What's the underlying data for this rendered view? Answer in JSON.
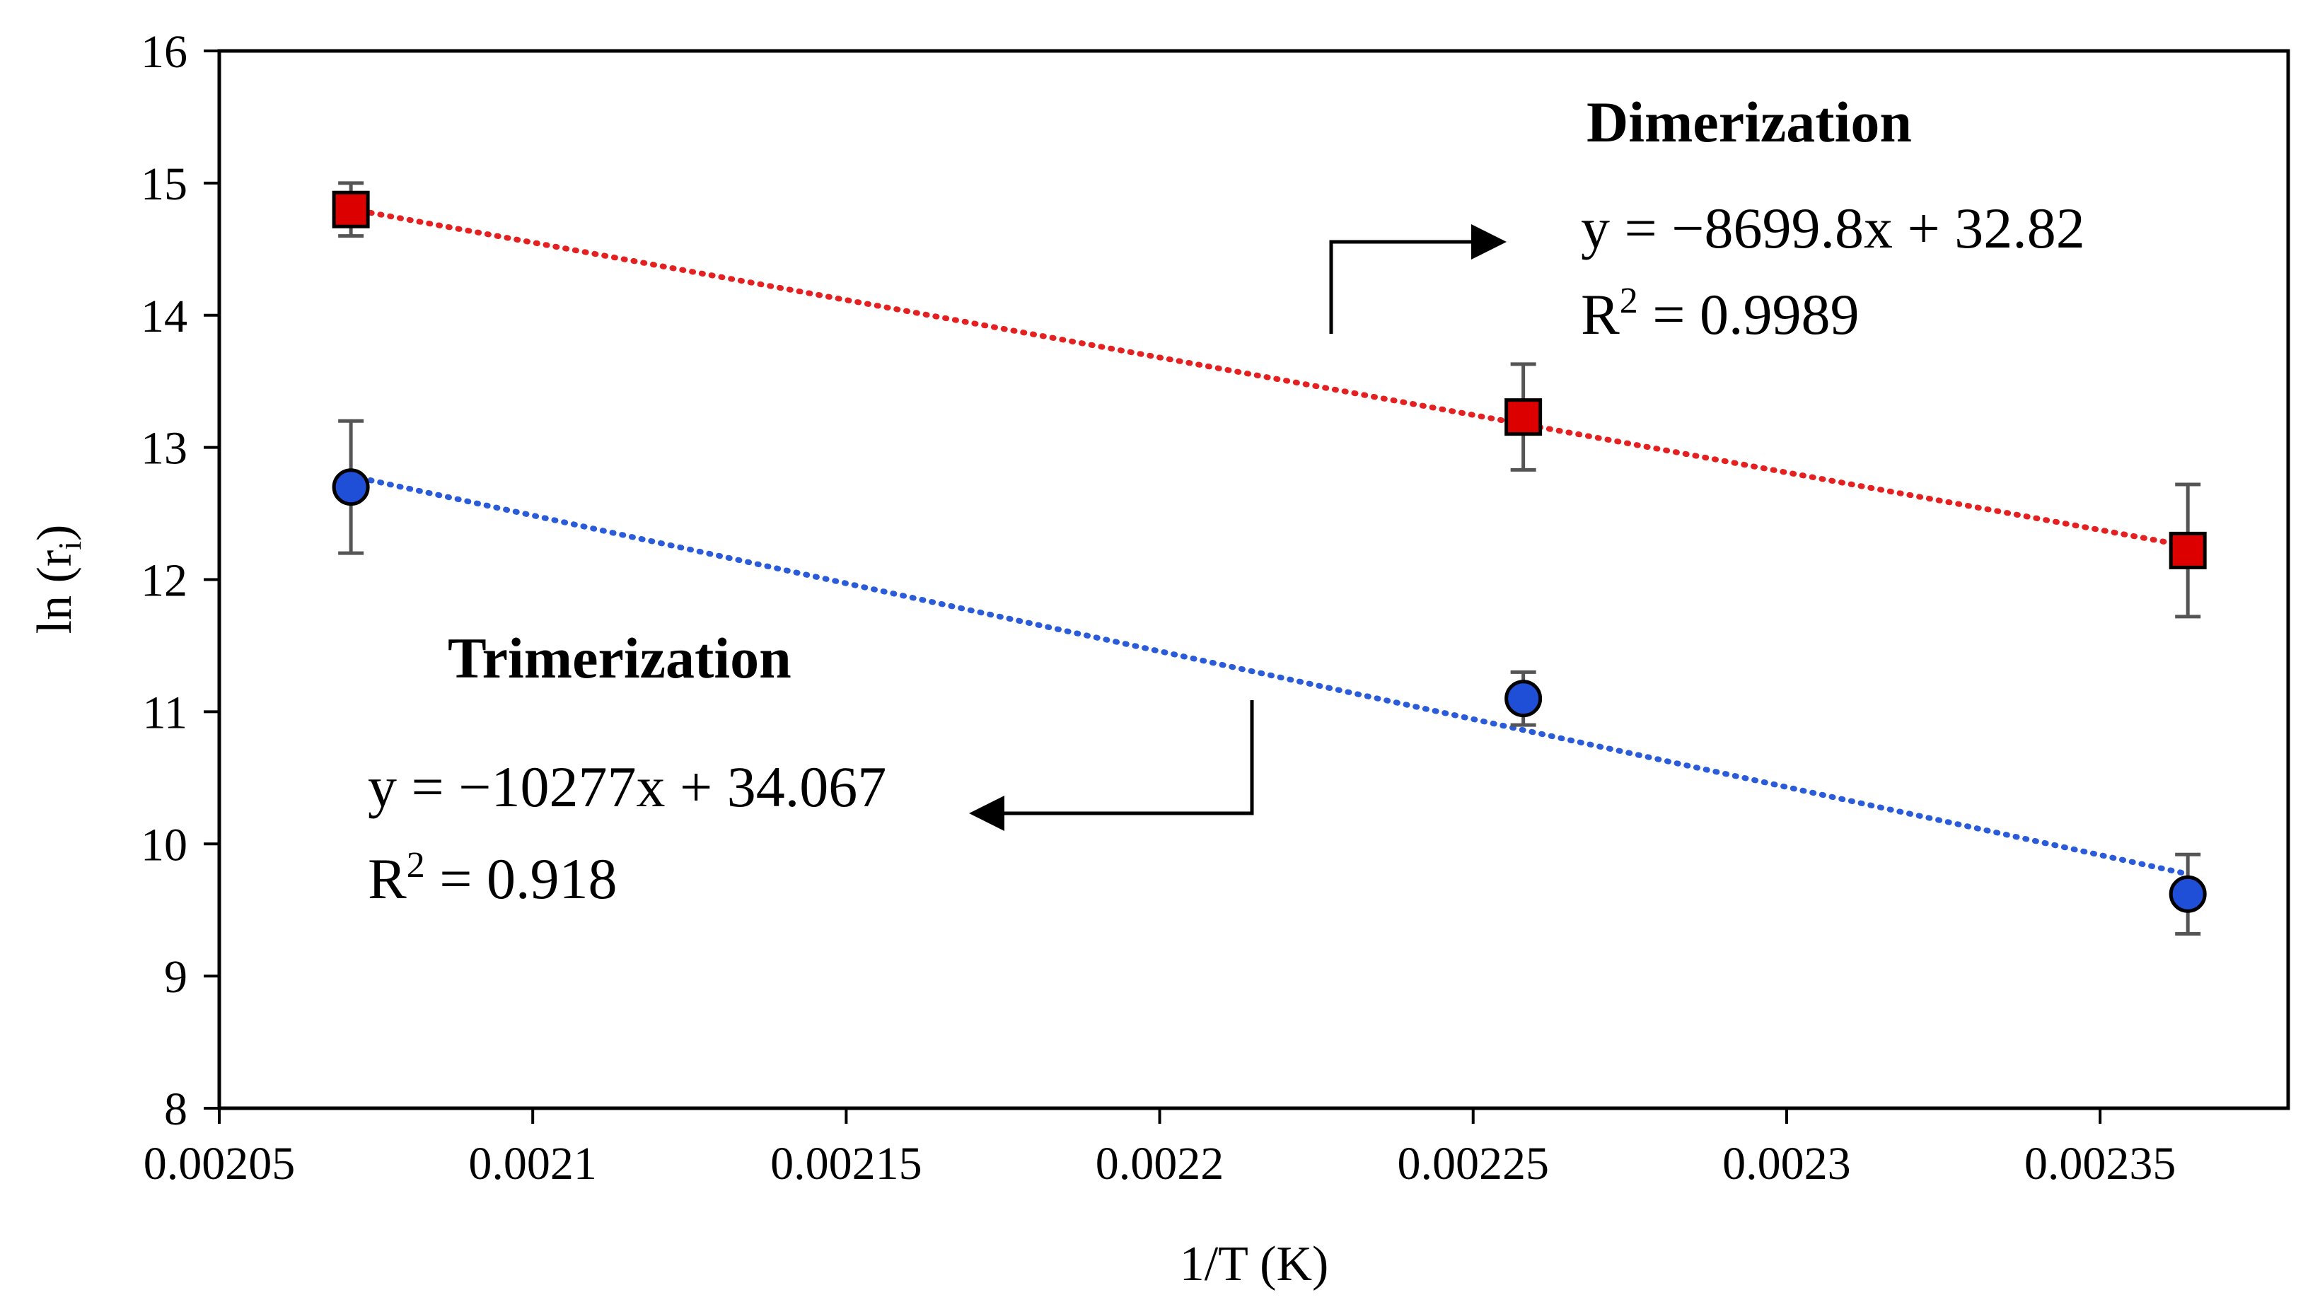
{
  "chart_data": {
    "type": "scatter",
    "title": "",
    "xlabel": "1/T (K)",
    "ylabel": "ln (r",
    "ylabel_sub": "i",
    "ylabel_close": ")",
    "xlim": [
      0.00205,
      0.00238
    ],
    "ylim": [
      8,
      16
    ],
    "x_ticks": [
      0.00205,
      0.0021,
      0.00215,
      0.0022,
      0.00225,
      0.0023,
      0.00235
    ],
    "x_tick_labels": [
      "0.00205",
      "0.0021",
      "0.00215",
      "0.0022",
      "0.00225",
      "0.0023",
      "0.00235"
    ],
    "y_ticks": [
      8,
      9,
      10,
      11,
      12,
      13,
      14,
      15,
      16
    ],
    "y_tick_labels": [
      "8",
      "9",
      "10",
      "11",
      "12",
      "13",
      "14",
      "15",
      "16"
    ],
    "grid": false,
    "series": [
      {
        "name": "Dimerization",
        "marker": "square",
        "color": "#dd0000",
        "trend_color": "#e52020",
        "x": [
          0.002071,
          0.002258,
          0.002364
        ],
        "y": [
          14.8,
          13.23,
          12.22
        ],
        "err": [
          0.2,
          0.4,
          0.5
        ],
        "trend": {
          "slope": -8699.8,
          "intercept": 32.82
        },
        "equation": "y = −8699.8x + 32.82",
        "r2_prefix": "R",
        "r2_sup": "2",
        "r2_value": " = 0.9989"
      },
      {
        "name": "Trimerization",
        "marker": "circle",
        "color": "#1f4fd6",
        "trend_color": "#2a5bd8",
        "x": [
          0.002071,
          0.002258,
          0.002364
        ],
        "y": [
          12.7,
          11.1,
          9.62
        ],
        "err": [
          0.5,
          0.2,
          0.3
        ],
        "trend": {
          "slope": -10277,
          "intercept": 34.067
        },
        "equation": "y = −10277x + 34.067",
        "r2_prefix": "R",
        "r2_sup": "2",
        "r2_value": " = 0.918"
      }
    ]
  }
}
